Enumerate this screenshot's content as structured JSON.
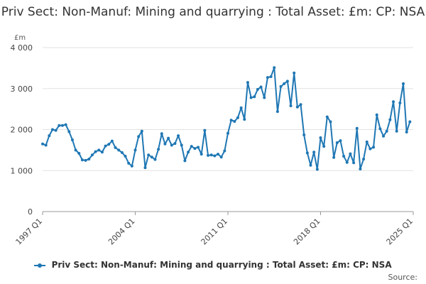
{
  "chart_data": {
    "type": "line",
    "title": "Priv Sect: Non-Manuf: Mining and quarrying : Total Asset: £m: CP: NSA",
    "unit_label": "£m",
    "ylim": [
      0,
      4000
    ],
    "y_ticks": [
      0,
      1000,
      2000,
      3000,
      4000
    ],
    "y_tick_labels": [
      "0",
      "1 000",
      "2 000",
      "3 000",
      "4 000"
    ],
    "x_tick_labels": [
      "1997 Q1",
      "2004 Q1",
      "2011 Q1",
      "2018 Q1",
      "2025 Q1"
    ],
    "x_tick_index": [
      0,
      28,
      56,
      84,
      112
    ],
    "series": [
      {
        "name": "Priv Sect: Non-Manuf: Mining and quarrying : Total Asset: £m: CP: NSA",
        "color": "#1f77b4",
        "values": [
          1650,
          1620,
          1850,
          2000,
          1980,
          2100,
          2100,
          2120,
          1950,
          1750,
          1500,
          1420,
          1260,
          1250,
          1280,
          1380,
          1460,
          1500,
          1450,
          1600,
          1640,
          1720,
          1560,
          1500,
          1440,
          1350,
          1180,
          1110,
          1500,
          1830,
          1960,
          1070,
          1380,
          1330,
          1270,
          1520,
          1900,
          1650,
          1790,
          1620,
          1660,
          1850,
          1620,
          1240,
          1450,
          1590,
          1540,
          1570,
          1400,
          1980,
          1370,
          1380,
          1360,
          1400,
          1330,
          1480,
          1910,
          2230,
          2200,
          2290,
          2530,
          2250,
          3150,
          2780,
          2800,
          2980,
          3040,
          2780,
          3270,
          3290,
          3510,
          2440,
          3050,
          3120,
          3180,
          2580,
          3380,
          2550,
          2610,
          1870,
          1430,
          1130,
          1450,
          1030,
          1800,
          1590,
          2310,
          2190,
          1320,
          1680,
          1730,
          1350,
          1200,
          1410,
          1190,
          2030,
          1040,
          1280,
          1700,
          1530,
          1570,
          2360,
          2020,
          1840,
          1960,
          2240,
          2680,
          1960,
          2650,
          3120,
          1940,
          2190
        ]
      }
    ],
    "legend_position": "bottom",
    "source_label": "Source:"
  }
}
